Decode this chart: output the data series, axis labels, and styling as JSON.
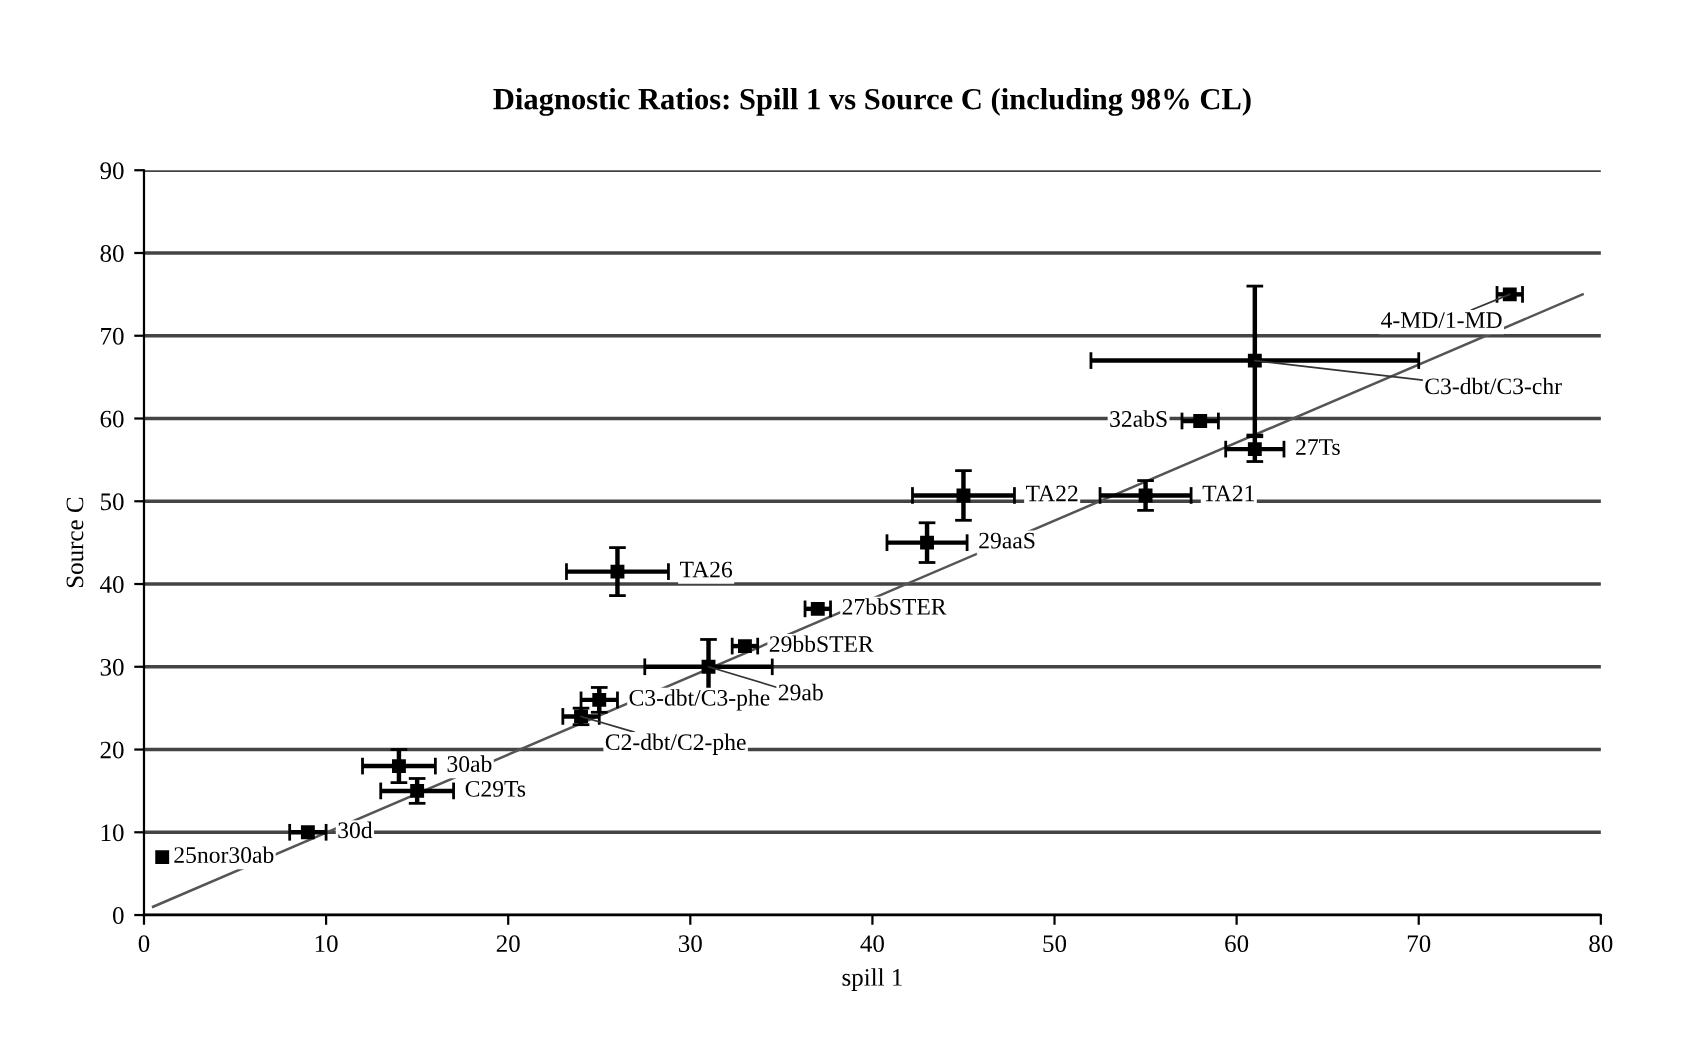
{
  "chart_data": {
    "type": "scatter",
    "title": "Diagnostic Ratios: Spill 1 vs Source C (including 98% CL)",
    "xlabel": "spill 1",
    "ylabel": "Source C",
    "xlim": [
      0,
      80
    ],
    "ylim": [
      0,
      90
    ],
    "xticks": [
      0,
      10,
      20,
      30,
      40,
      50,
      60,
      70,
      80
    ],
    "yticks": [
      0,
      10,
      20,
      30,
      40,
      50,
      60,
      70,
      80,
      90
    ],
    "grid": "y",
    "legend": false,
    "marker": "square",
    "series": [
      {
        "color": "#000000",
        "x": [
          1,
          9,
          14,
          15,
          25,
          24,
          31,
          33,
          37,
          26,
          43,
          45,
          55,
          58,
          61,
          61,
          75
        ],
        "values": [
          7,
          10,
          18,
          15,
          26,
          24,
          30,
          32.5,
          37,
          41.5,
          45,
          50.7,
          50.7,
          59.7,
          56.3,
          67,
          75
        ],
        "xerrors": [
          null,
          1,
          2,
          2,
          1,
          1,
          3.5,
          0.7,
          0.7,
          2.8,
          2.2,
          2.8,
          2.5,
          1,
          1.6,
          9,
          0.7
        ],
        "errors": [
          null,
          null,
          2,
          1.5,
          1.5,
          1,
          3.3,
          null,
          null,
          2.9,
          2.4,
          3,
          1.8,
          null,
          1.5,
          9,
          null
        ]
      },
      {
        "type": "line",
        "marker": "none",
        "color": "#555555",
        "x": [
          0.5,
          79
        ],
        "values": [
          1,
          75
        ]
      }
    ],
    "annotations": [
      {
        "text": "25nor30ab",
        "x": 1,
        "y": 7
      },
      {
        "text": "30d",
        "x": 9,
        "y": 10
      },
      {
        "text": "30ab",
        "x": 14,
        "y": 18
      },
      {
        "text": "C29Ts",
        "x": 15,
        "y": 15
      },
      {
        "text": "C3-dbt/C3-phe",
        "x": 25,
        "y": 26
      },
      {
        "text": "C2-dbt/C2-phe",
        "x": 24,
        "y": 24
      },
      {
        "text": "29ab",
        "x": 31,
        "y": 30
      },
      {
        "text": "29bbSTER",
        "x": 33,
        "y": 32.5
      },
      {
        "text": "27bbSTER",
        "x": 37,
        "y": 37
      },
      {
        "text": "TA26",
        "x": 26,
        "y": 41.5
      },
      {
        "text": "29aaS",
        "x": 43,
        "y": 45
      },
      {
        "text": "TA22",
        "x": 45,
        "y": 50.7
      },
      {
        "text": "TA21",
        "x": 55,
        "y": 50.7
      },
      {
        "text": "32abS",
        "x": 58,
        "y": 59.7
      },
      {
        "text": "27Ts",
        "x": 61,
        "y": 56.3
      },
      {
        "text": "C3-dbt/C3-chr",
        "x": 61,
        "y": 67
      },
      {
        "text": "4-MD/1-MD",
        "x": 75,
        "y": 75
      }
    ]
  }
}
